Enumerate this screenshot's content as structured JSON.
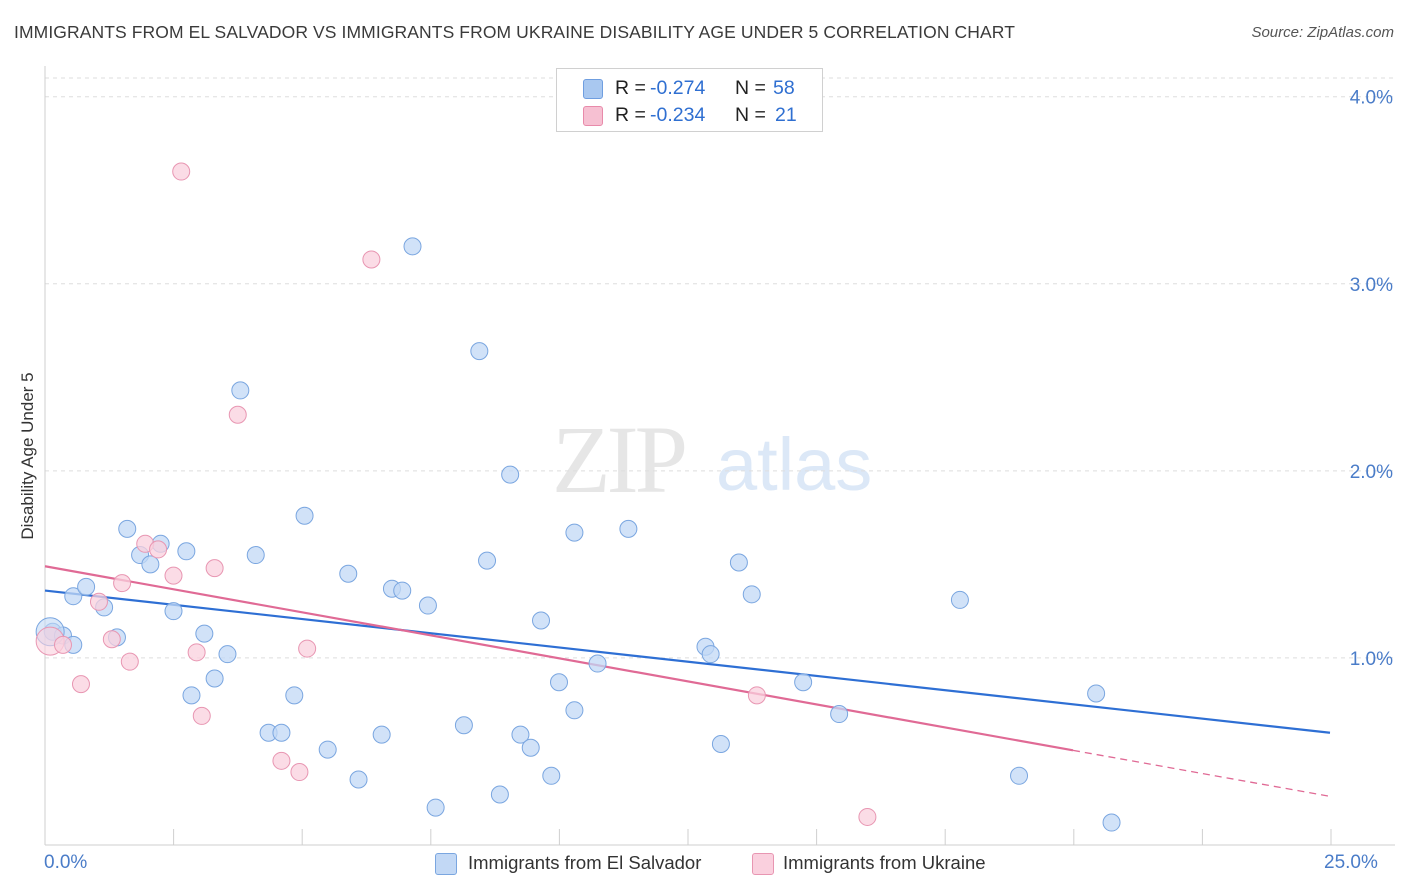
{
  "header": {
    "title": "IMMIGRANTS FROM EL SALVADOR VS IMMIGRANTS FROM UKRAINE DISABILITY AGE UNDER 5 CORRELATION CHART",
    "source": "Source: ZipAtlas.com"
  },
  "watermark": {
    "zip": "ZIP",
    "atlas": "atlas"
  },
  "legend": {
    "rows": [
      {
        "r_label": "R =",
        "r_value": "-0.274",
        "n_label": "N =",
        "n_value": "58",
        "color": "#a9c8f0",
        "border": "#6f9ee0"
      },
      {
        "r_label": "R =",
        "r_value": "-0.234",
        "n_label": "N =",
        "n_value": "21",
        "color": "#f6c0d2",
        "border": "#e88aaa"
      }
    ]
  },
  "bottom_legend": {
    "items": [
      {
        "label": "Immigrants from El Salvador",
        "color": "#c2d8f5",
        "border": "#7aa6e0"
      },
      {
        "label": "Immigrants from Ukraine",
        "color": "#fad0de",
        "border": "#e896b2"
      }
    ]
  },
  "chart_data": {
    "type": "scatter",
    "title": "IMMIGRANTS FROM EL SALVADOR VS IMMIGRANTS FROM UKRAINE DISABILITY AGE UNDER 5 CORRELATION CHART",
    "xlabel": "",
    "ylabel": "Disability Age Under 5",
    "xlim": [
      0,
      25
    ],
    "ylim": [
      0,
      4.1
    ],
    "x_tick_labels": [
      "0.0%",
      "25.0%"
    ],
    "y_ticks": [
      1,
      2,
      3,
      4
    ],
    "y_tick_labels": [
      "1.0%",
      "2.0%",
      "3.0%",
      "4.0%"
    ],
    "grid": true,
    "legend_position": "top-center",
    "series": [
      {
        "name": "Immigrants from El Salvador",
        "color": "#7aa6e0",
        "fill": "#c2d8f5",
        "trend": {
          "x": [
            0,
            25
          ],
          "y": [
            1.36,
            0.6
          ]
        },
        "points": [
          [
            0.15,
            1.14
          ],
          [
            0.35,
            1.12
          ],
          [
            0.55,
            1.07
          ],
          [
            0.55,
            1.33
          ],
          [
            0.8,
            1.38
          ],
          [
            1.15,
            1.27
          ],
          [
            1.4,
            1.11
          ],
          [
            1.6,
            1.69
          ],
          [
            1.85,
            1.55
          ],
          [
            2.05,
            1.5
          ],
          [
            2.25,
            1.61
          ],
          [
            2.5,
            1.25
          ],
          [
            2.75,
            1.57
          ],
          [
            2.85,
            0.8
          ],
          [
            3.1,
            1.13
          ],
          [
            3.3,
            0.89
          ],
          [
            3.55,
            1.02
          ],
          [
            3.8,
            2.43
          ],
          [
            4.1,
            1.55
          ],
          [
            4.35,
            0.6
          ],
          [
            4.6,
            0.6
          ],
          [
            4.85,
            0.8
          ],
          [
            5.05,
            1.76
          ],
          [
            5.5,
            0.51
          ],
          [
            5.9,
            1.45
          ],
          [
            6.1,
            0.35
          ],
          [
            6.55,
            0.59
          ],
          [
            6.75,
            1.37
          ],
          [
            6.95,
            1.36
          ],
          [
            7.15,
            3.2
          ],
          [
            7.45,
            1.28
          ],
          [
            7.6,
            0.2
          ],
          [
            8.15,
            0.64
          ],
          [
            8.45,
            2.64
          ],
          [
            8.6,
            1.52
          ],
          [
            8.85,
            0.27
          ],
          [
            9.05,
            1.98
          ],
          [
            9.25,
            0.59
          ],
          [
            9.45,
            0.52
          ],
          [
            9.65,
            1.2
          ],
          [
            9.85,
            0.37
          ],
          [
            10.0,
            0.87
          ],
          [
            10.3,
            0.72
          ],
          [
            10.3,
            1.67
          ],
          [
            10.75,
            0.97
          ],
          [
            11.35,
            1.69
          ],
          [
            12.85,
            1.06
          ],
          [
            12.95,
            1.02
          ],
          [
            13.15,
            0.54
          ],
          [
            13.5,
            1.51
          ],
          [
            13.75,
            1.34
          ],
          [
            14.75,
            0.87
          ],
          [
            15.45,
            0.7
          ],
          [
            17.8,
            1.31
          ],
          [
            18.95,
            0.37
          ],
          [
            20.45,
            0.81
          ],
          [
            20.75,
            0.12
          ],
          [
            0.1,
            1.14
          ]
        ]
      },
      {
        "name": "Immigrants from Ukraine",
        "color": "#e896b2",
        "fill": "#fad0de",
        "trend": {
          "x": [
            0,
            25
          ],
          "y": [
            1.49,
            0.26
          ],
          "solid_until": 20
        },
        "points": [
          [
            0.1,
            1.09
          ],
          [
            0.35,
            1.07
          ],
          [
            0.7,
            0.86
          ],
          [
            1.05,
            1.3
          ],
          [
            1.3,
            1.1
          ],
          [
            1.5,
            1.4
          ],
          [
            1.65,
            0.98
          ],
          [
            1.95,
            1.61
          ],
          [
            2.2,
            1.58
          ],
          [
            2.5,
            1.44
          ],
          [
            2.65,
            3.6
          ],
          [
            2.95,
            1.03
          ],
          [
            3.05,
            0.69
          ],
          [
            3.3,
            1.48
          ],
          [
            3.75,
            2.3
          ],
          [
            4.6,
            0.45
          ],
          [
            4.95,
            0.39
          ],
          [
            5.1,
            1.05
          ],
          [
            6.35,
            3.13
          ],
          [
            13.85,
            0.8
          ],
          [
            16.0,
            0.15
          ]
        ]
      }
    ]
  }
}
